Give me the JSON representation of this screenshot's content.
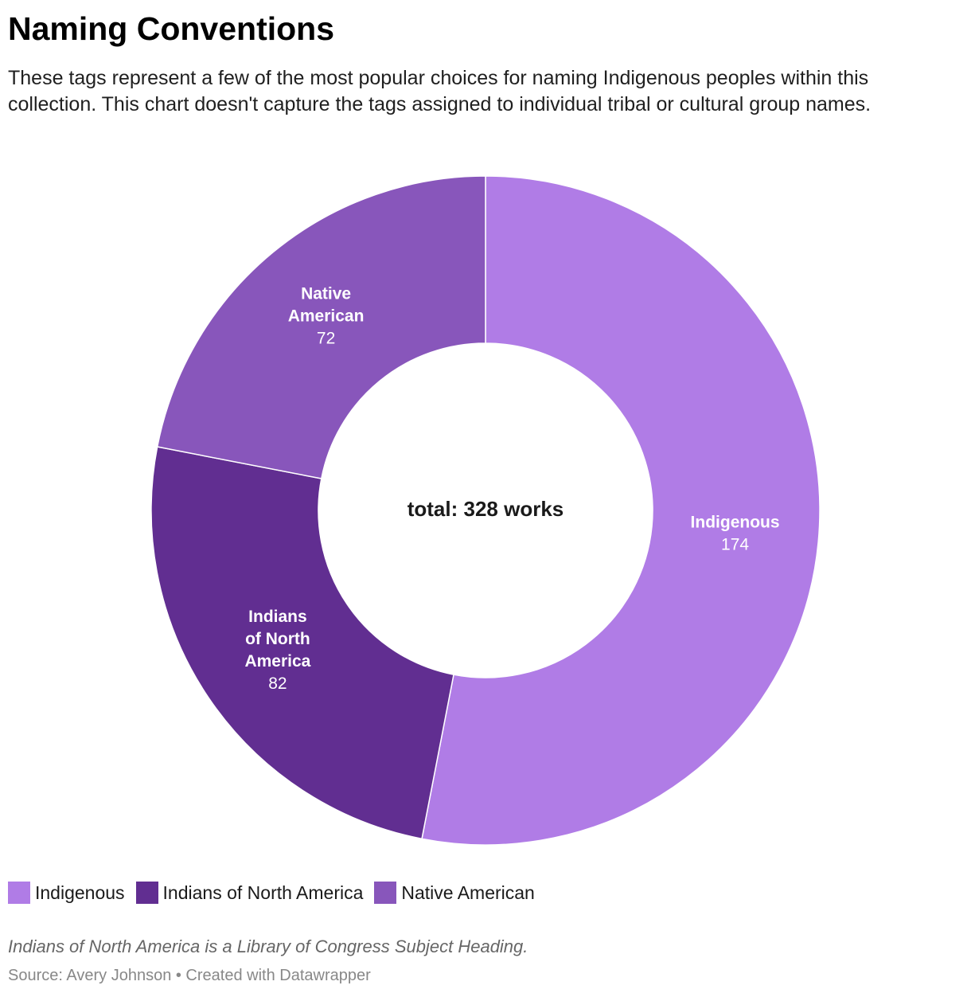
{
  "header": {
    "title": "Naming Conventions",
    "subtitle": "These tags represent a few of the most popular choices for naming Indigenous peoples within this collection. This chart doesn't capture the tags assigned to individual tribal or cultural group names."
  },
  "chart_data": {
    "type": "pie",
    "donut": true,
    "center_label": "total: 328 works",
    "slices": [
      {
        "label": "Indigenous",
        "label_lines": [
          "Indigenous"
        ],
        "value": 174,
        "display_value": "174",
        "color": "#b07ce6"
      },
      {
        "label": "Indians of North America",
        "label_lines": [
          "Indians",
          "of North",
          "America"
        ],
        "value": 82,
        "display_value": "82",
        "color": "#612e91"
      },
      {
        "label": "Native American",
        "label_lines": [
          "Native",
          "American"
        ],
        "value": 72,
        "display_value": "72",
        "color": "#8856bb"
      }
    ],
    "legend_placement": "bottom-left"
  },
  "legend": {
    "items": [
      {
        "label": "Indigenous",
        "color": "#b07ce6"
      },
      {
        "label": "Indians of North America",
        "color": "#612e91"
      },
      {
        "label": "Native American",
        "color": "#8856bb"
      }
    ]
  },
  "footer": {
    "note": "Indians of North America is a Library of Congress Subject Heading.",
    "source": "Source: Avery Johnson • Created with Datawrapper"
  }
}
